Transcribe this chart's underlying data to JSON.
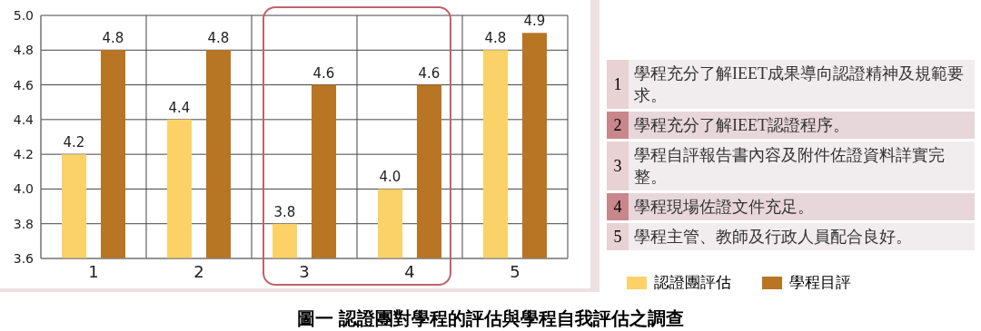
{
  "chart_data": {
    "type": "bar",
    "title": "圖一 認證團對學程的評估與學程自我評估之調查",
    "categories": [
      "1",
      "2",
      "3",
      "4",
      "5"
    ],
    "series": [
      {
        "name": "認證團評估",
        "color": "#fbd268",
        "values": [
          4.2,
          4.4,
          3.8,
          4.0,
          4.8
        ],
        "value_labels": [
          "4.2",
          "4.4",
          "3.8",
          "4.0",
          "4.8"
        ]
      },
      {
        "name": "學程目評",
        "color": "#b87523",
        "values": [
          4.8,
          4.8,
          4.6,
          4.6,
          4.9
        ],
        "value_labels": [
          "4.8",
          "4.8",
          "4.6",
          "4.6",
          "4.9"
        ]
      }
    ],
    "ylim": [
      3.6,
      5.0
    ],
    "yticks": [
      3.6,
      3.8,
      {
        "value": 4,
        "label": "4.0"
      },
      4.2,
      4.4,
      4.6,
      4.8,
      {
        "value": 5,
        "label": "5.0"
      }
    ],
    "grid": true,
    "legend": "bottom right",
    "annotations": [
      "學程充分了解IEET成果導向認證精神及規範要求。",
      "學程充分了解IEET認證程序。",
      "學程自評報告書內容及附件佐證資料詳實完整。",
      "學程現場佐證文件充足。",
      "學程主管、教師及行政人員配合良好。"
    ]
  }
}
